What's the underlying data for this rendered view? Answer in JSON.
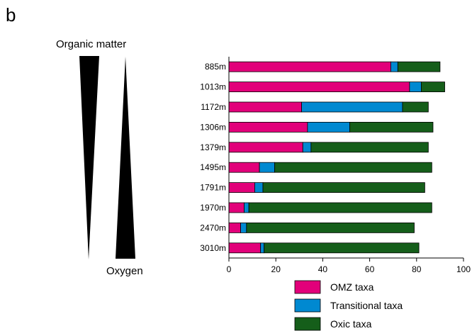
{
  "panel_letter": "b",
  "gradients": {
    "organic_matter_label": "Organic matter",
    "oxygen_label": "Oxygen"
  },
  "colors": {
    "omz": "#e2007a",
    "transitional": "#0089d1",
    "oxic": "#155e1a"
  },
  "chart_data": {
    "type": "bar",
    "orientation": "horizontal",
    "stacked": true,
    "categories": [
      "885m",
      "1013m",
      "1172m",
      "1306m",
      "1379m",
      "1495m",
      "1791m",
      "1970m",
      "2470m",
      "3010m"
    ],
    "series": [
      {
        "name": "OMZ taxa",
        "values": [
          69,
          77,
          31,
          33.5,
          31.5,
          13,
          11,
          6.5,
          5,
          13.5
        ]
      },
      {
        "name": "Transitional taxa",
        "values": [
          3,
          5,
          43,
          18,
          3.5,
          6.5,
          3.5,
          2,
          2.5,
          1.5
        ]
      },
      {
        "name": "Oxic taxa",
        "values": [
          18,
          10,
          11,
          35.5,
          50,
          67,
          69,
          78,
          71.5,
          66
        ]
      }
    ],
    "xlim": [
      0,
      100
    ],
    "xticks": [
      "0",
      "20",
      "40",
      "60",
      "80",
      "100"
    ],
    "legend_position": "bottom-right",
    "grid": false
  }
}
